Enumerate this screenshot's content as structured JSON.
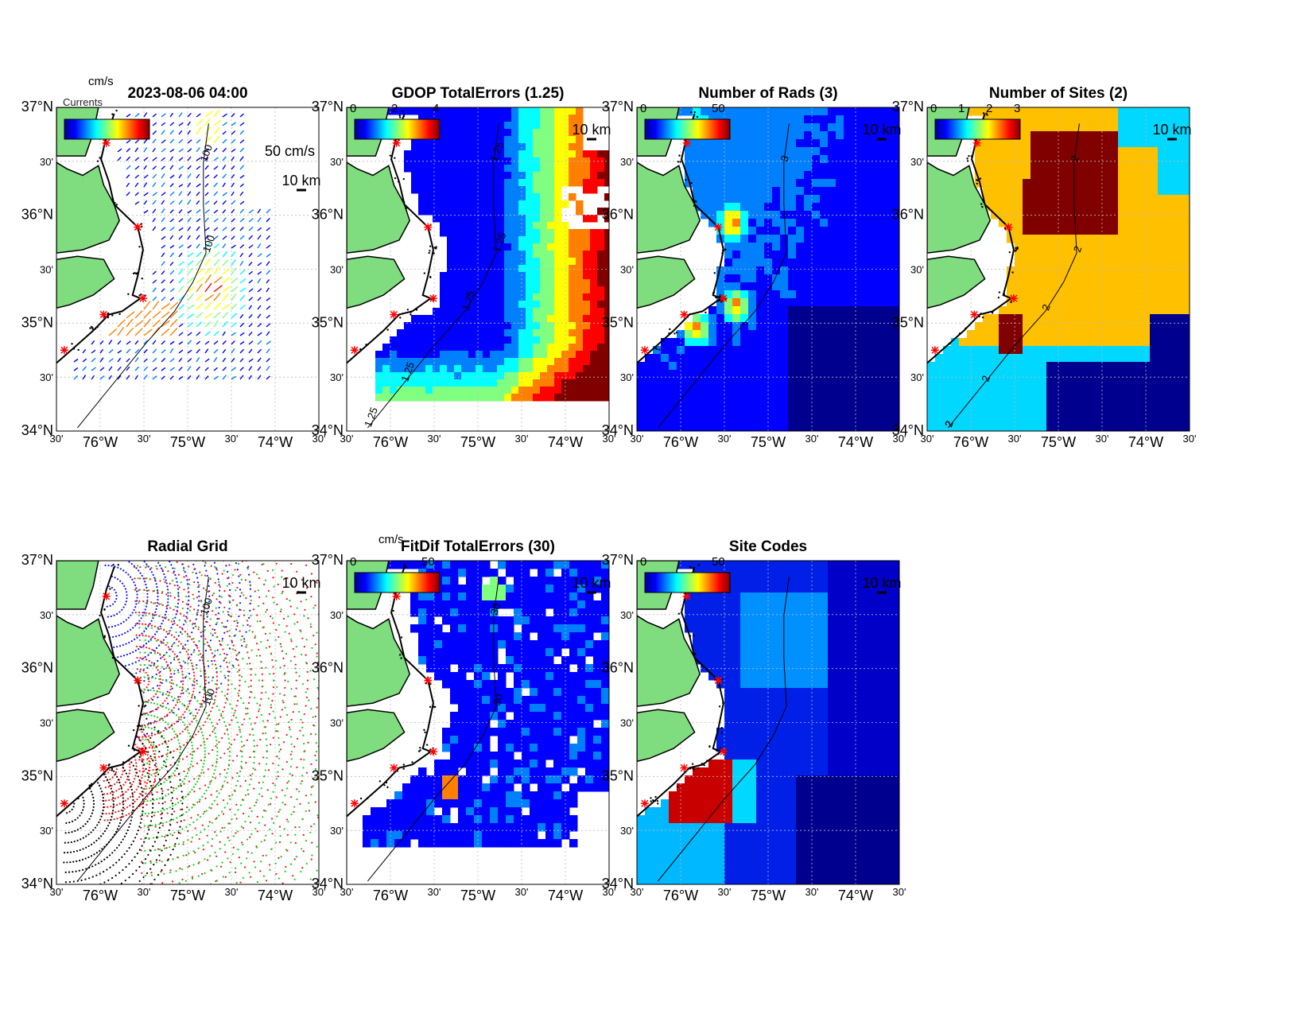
{
  "figure": {
    "colormap": [
      "#00008f",
      "#0000ff",
      "#0080ff",
      "#00ffff",
      "#80ff80",
      "#ffff00",
      "#ff8000",
      "#ff0000",
      "#800000"
    ],
    "land_color": "#7fdd7f",
    "lat_labels": [
      "37°N",
      "30'",
      "36°N",
      "30'",
      "35°N",
      "30'",
      "34°N"
    ],
    "lon_labels": [
      "30'",
      "76°W",
      "30'",
      "75°W",
      "30'",
      "74°W",
      "30'"
    ],
    "scale_label": "10 km",
    "isobath_label": "100"
  },
  "panels": [
    {
      "id": "total-vectors",
      "title": "2023-08-06 04:00",
      "units": "cm/s",
      "colorbar_ticks": [],
      "vector_scale": "50 cm/s",
      "contour_labels": [
        "100",
        "100"
      ],
      "overlap_text": "Currents"
    },
    {
      "id": "gdop",
      "title": "GDOP TotalErrors (1.25)",
      "units": "",
      "colorbar_ticks": [
        "0",
        "2",
        "4"
      ],
      "contour_labels": [
        "1.25",
        "1.25",
        "1.25",
        "1.25",
        "1.25"
      ]
    },
    {
      "id": "num-rads",
      "title": "Number of Rads (3)",
      "units": "",
      "colorbar_ticks": [
        "0",
        "50"
      ],
      "contour_labels": [
        "3"
      ]
    },
    {
      "id": "num-sites",
      "title": "Number of Sites (2)",
      "units": "",
      "colorbar_ticks": [
        "0",
        "1",
        "2",
        "3"
      ],
      "contour_labels": [
        "2",
        "2",
        "2",
        "2",
        "2",
        "2",
        "2",
        "2"
      ]
    },
    {
      "id": "radial-grid",
      "title": "Radial Grid",
      "units": "",
      "colorbar_ticks": [],
      "contour_labels": [
        "100",
        "100"
      ]
    },
    {
      "id": "fitdif",
      "title": "FitDif TotalErrors (30)",
      "units": "cm/s",
      "colorbar_ticks": [
        "0",
        "50"
      ],
      "contour_labels": [
        "30",
        "30"
      ]
    },
    {
      "id": "site-codes",
      "title": "Site Codes",
      "units": "",
      "colorbar_ticks": [
        "0",
        "50"
      ],
      "contour_labels": []
    }
  ]
}
